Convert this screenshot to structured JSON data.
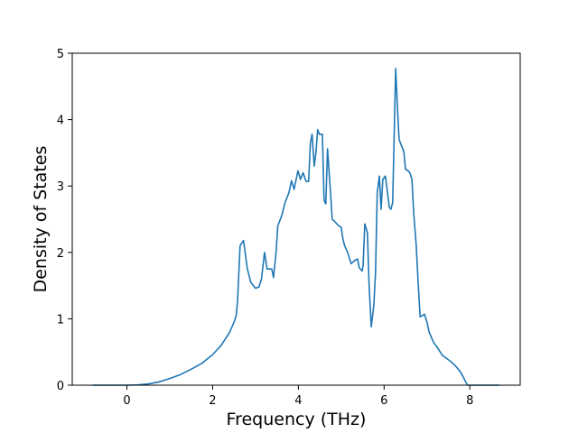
{
  "chart_data": {
    "type": "line",
    "x_label": "Frequency (THz)",
    "y_label": "Density of States",
    "xlim": [
      -1.275,
      9.175
    ],
    "ylim": [
      0,
      5
    ],
    "xticks": [
      0,
      2,
      4,
      6,
      8
    ],
    "yticks": [
      0,
      1,
      2,
      3,
      4,
      5
    ],
    "color": "#1f77b4",
    "x": [
      -0.8,
      0,
      0.25,
      0.5,
      0.75,
      1.0,
      1.25,
      1.5,
      1.75,
      2.0,
      2.2,
      2.4,
      2.5,
      2.55,
      2.58,
      2.64,
      2.72,
      2.81,
      2.89,
      3.0,
      3.08,
      3.14,
      3.21,
      3.27,
      3.38,
      3.42,
      3.48,
      3.52,
      3.61,
      3.69,
      3.78,
      3.84,
      3.9,
      3.99,
      4.05,
      4.11,
      4.18,
      4.24,
      4.28,
      4.32,
      4.37,
      4.41,
      4.45,
      4.49,
      4.56,
      4.6,
      4.64,
      4.68,
      4.75,
      4.79,
      4.87,
      4.94,
      5.0,
      5.04,
      5.08,
      5.15,
      5.23,
      5.32,
      5.38,
      5.42,
      5.49,
      5.51,
      5.55,
      5.61,
      5.65,
      5.7,
      5.76,
      5.8,
      5.84,
      5.89,
      5.93,
      5.97,
      6.03,
      6.08,
      6.12,
      6.16,
      6.2,
      6.27,
      6.31,
      6.35,
      6.41,
      6.46,
      6.5,
      6.56,
      6.6,
      6.65,
      6.69,
      6.75,
      6.79,
      6.84,
      6.9,
      6.94,
      7.0,
      7.05,
      7.15,
      7.26,
      7.36,
      7.57,
      7.68,
      7.78,
      7.85,
      7.91,
      7.95,
      8.1,
      8.69
    ],
    "values": [
      0,
      0,
      0.005,
      0.02,
      0.05,
      0.1,
      0.16,
      0.24,
      0.33,
      0.46,
      0.6,
      0.8,
      0.95,
      1.05,
      1.25,
      2.1,
      2.18,
      1.75,
      1.55,
      1.46,
      1.48,
      1.6,
      2.0,
      1.75,
      1.75,
      1.62,
      2.0,
      2.4,
      2.55,
      2.75,
      2.9,
      3.08,
      2.95,
      3.23,
      3.1,
      3.2,
      3.07,
      3.07,
      3.65,
      3.78,
      3.3,
      3.5,
      3.85,
      3.78,
      3.78,
      2.78,
      2.73,
      3.56,
      2.9,
      2.5,
      2.45,
      2.4,
      2.38,
      2.2,
      2.1,
      2.0,
      1.83,
      1.88,
      1.9,
      1.77,
      1.72,
      1.8,
      2.43,
      2.3,
      1.5,
      0.88,
      1.2,
      1.7,
      2.9,
      3.15,
      2.65,
      3.1,
      3.15,
      2.9,
      2.68,
      2.65,
      2.75,
      4.77,
      4.2,
      3.7,
      3.6,
      3.52,
      3.25,
      3.23,
      3.2,
      3.1,
      2.6,
      2.1,
      1.6,
      1.03,
      1.05,
      1.07,
      0.95,
      0.8,
      0.65,
      0.55,
      0.45,
      0.35,
      0.28,
      0.2,
      0.12,
      0.04,
      0,
      0,
      0
    ]
  }
}
